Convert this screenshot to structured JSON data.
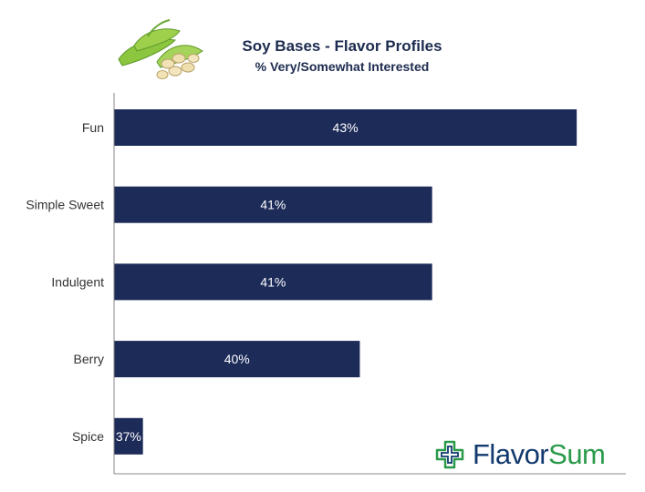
{
  "header": {
    "title": "Soy Bases - Flavor Profiles",
    "subtitle": "% Very/Somewhat Interested"
  },
  "brand": {
    "word1": "Flavor",
    "word2": "Sum",
    "icon": "plus-cross-icon",
    "colors": {
      "primary": "#123a6e",
      "accent": "#2a9a4a"
    }
  },
  "illustration": {
    "icon": "soybean-pods-icon"
  },
  "colors": {
    "bar": "#1d2b59",
    "axis": "#8a8a8a",
    "label": "#333333",
    "bar_text": "#ffffff"
  },
  "chart_data": {
    "type": "bar",
    "orientation": "horizontal",
    "title": "Soy Bases - Flavor Profiles",
    "subtitle": "% Very/Somewhat Interested",
    "categories": [
      "Fun",
      "Simple Sweet",
      "Indulgent",
      "Berry",
      "Spice"
    ],
    "values": [
      43,
      41,
      41,
      40,
      37
    ],
    "value_labels": [
      "43%",
      "41%",
      "41%",
      "40%",
      "37%"
    ],
    "xlim": [
      36.6,
      43.2
    ],
    "xlabel": "",
    "ylabel": "",
    "grid": false,
    "legend": "none"
  }
}
